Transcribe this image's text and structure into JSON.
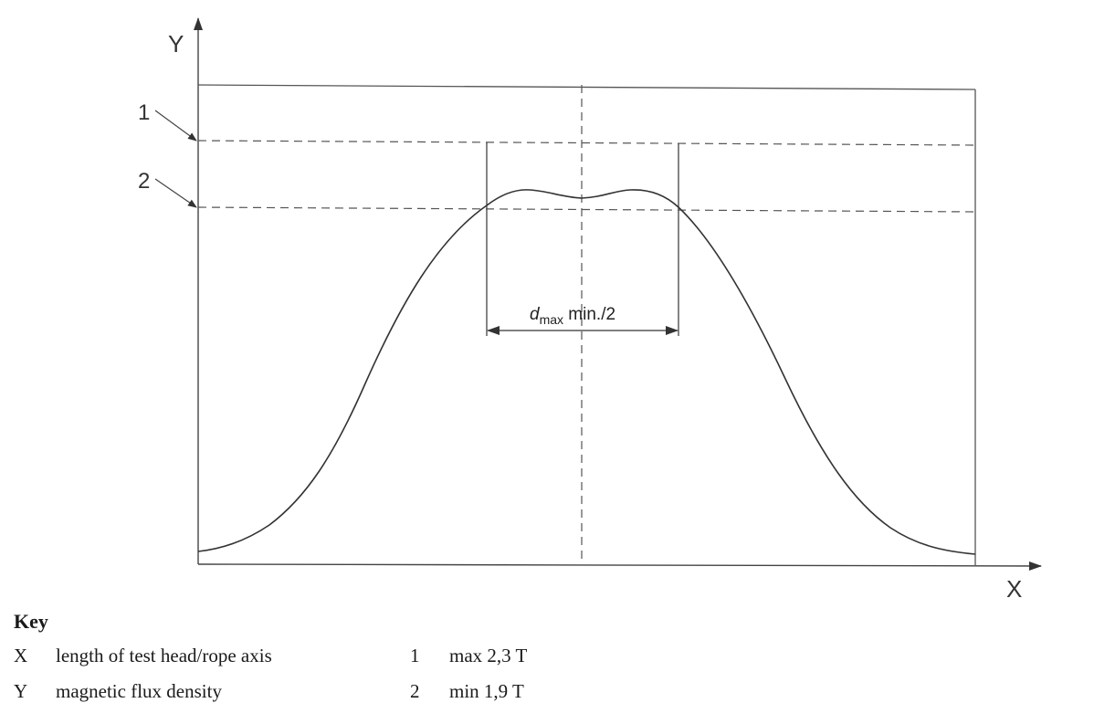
{
  "diagram": {
    "axis_x_label": "X",
    "axis_y_label": "Y",
    "level_1_label": "1",
    "level_2_label": "2",
    "dimension_symbol": "d",
    "dimension_subscript": "max",
    "dimension_text": " min./2"
  },
  "key": {
    "title": "Key",
    "rows": [
      {
        "symbol": "X",
        "description": "length of test head/rope axis",
        "number": "1",
        "value": "max 2,3 T"
      },
      {
        "symbol": "Y",
        "description": "magnetic flux density",
        "number": "2",
        "value": "min 1,9 T"
      }
    ]
  }
}
